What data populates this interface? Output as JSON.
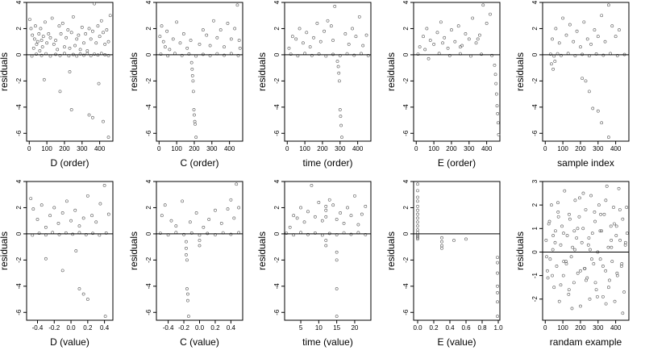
{
  "chart_data": [
    {
      "type": "scatter",
      "xlabel": "D (order)",
      "ylabel": "residuals",
      "xlim": [
        -15,
        475
      ],
      "ylim": [
        -6.6,
        4.0
      ],
      "xticks": [
        0,
        100,
        200,
        300,
        400
      ],
      "yticks": [
        4,
        2,
        0,
        -2,
        -4,
        -6
      ],
      "hline": 0,
      "x": [
        3,
        10,
        18,
        25,
        30,
        35,
        42,
        48,
        55,
        60,
        65,
        70,
        75,
        80,
        90,
        100,
        110,
        120,
        130,
        140,
        150,
        160,
        170,
        180,
        190,
        200,
        210,
        220,
        230,
        240,
        250,
        260,
        270,
        280,
        290,
        300,
        310,
        320,
        330,
        340,
        350,
        360,
        370,
        380,
        390,
        400,
        410,
        420,
        430,
        440,
        450,
        460,
        15,
        40,
        70,
        95,
        120,
        150,
        175,
        200,
        225,
        250,
        270,
        290,
        310,
        330,
        350,
        370,
        390,
        410,
        430,
        450,
        85,
        175,
        230,
        240,
        340,
        360,
        395,
        420,
        450
      ],
      "y": [
        2.7,
        2.0,
        1.5,
        0.5,
        1.2,
        2.2,
        0.8,
        1.0,
        1.6,
        0.3,
        2.0,
        1.1,
        0.6,
        1.4,
        2.5,
        0.9,
        1.6,
        1.3,
        2.8,
        0.8,
        1.1,
        0.4,
        2.2,
        1.6,
        2.4,
        0.6,
        1.3,
        1.9,
        0.5,
        1.7,
        2.9,
        0.7,
        1.2,
        1.5,
        0.4,
        2.1,
        0.9,
        1.6,
        0.3,
        2.0,
        1.2,
        1.8,
        3.9,
        0.9,
        2.2,
        1.4,
        2.6,
        1.7,
        0.8,
        1.9,
        1.0,
        3.0,
        -0.1,
        0.05,
        -0.05,
        0.08,
        -0.1,
        0.03,
        -0.06,
        0.1,
        -0.08,
        0.02,
        -0.1,
        0.06,
        -0.04,
        0.09,
        -0.07,
        0.05,
        -0.02,
        0.1,
        0.0,
        -0.06,
        -1.9,
        -2.8,
        -1.3,
        -4.2,
        -4.6,
        -4.8,
        -2.2,
        -5.1,
        -6.3
      ]
    },
    {
      "type": "scatter",
      "xlabel": "C (order)",
      "ylabel": "residuals",
      "xlim": [
        -15,
        475
      ],
      "ylim": [
        -6.6,
        4.0
      ],
      "xticks": [
        0,
        100,
        200,
        300,
        400
      ],
      "yticks": [
        4,
        2,
        0,
        -2,
        -4,
        -6
      ],
      "hline": 0,
      "x": [
        5,
        15,
        25,
        35,
        45,
        60,
        80,
        100,
        120,
        140,
        160,
        180,
        230,
        250,
        270,
        290,
        310,
        330,
        350,
        370,
        390,
        410,
        430,
        445,
        455,
        460,
        10,
        50,
        90,
        130,
        170,
        210,
        250,
        290,
        330,
        370,
        410,
        450,
        185,
        188,
        190,
        193,
        195,
        198,
        200,
        203,
        205,
        210
      ],
      "y": [
        1.4,
        2.2,
        1.0,
        0.6,
        1.8,
        0.4,
        1.2,
        2.5,
        0.9,
        1.6,
        0.5,
        1.1,
        0.8,
        1.9,
        1.5,
        0.7,
        2.6,
        1.3,
        1.9,
        0.6,
        2.4,
        1.2,
        2.0,
        3.8,
        1.1,
        0.5,
        0.05,
        -0.08,
        0.1,
        -0.05,
        0.06,
        -0.1,
        0.03,
        -0.07,
        0.08,
        -0.04,
        0.09,
        -0.06,
        -0.6,
        -1.1,
        -1.6,
        -2.0,
        -2.8,
        -4.2,
        -4.6,
        -5.1,
        -5.3,
        -6.3
      ]
    },
    {
      "type": "scatter",
      "xlabel": "time (order)",
      "ylabel": "residuals",
      "xlim": [
        -15,
        475
      ],
      "ylim": [
        -6.6,
        4.0
      ],
      "xticks": [
        0,
        100,
        200,
        300,
        400
      ],
      "yticks": [
        4,
        2,
        0,
        -2,
        -4,
        -6
      ],
      "hline": 0,
      "x": [
        10,
        30,
        50,
        70,
        90,
        110,
        130,
        150,
        170,
        190,
        210,
        230,
        250,
        260,
        270,
        330,
        350,
        370,
        390,
        410,
        430,
        450,
        20,
        60,
        100,
        140,
        180,
        220,
        260,
        300,
        340,
        380,
        420,
        460,
        285,
        290,
        293,
        296,
        300,
        303,
        306,
        310
      ],
      "y": [
        0.5,
        1.4,
        1.2,
        2.0,
        0.9,
        1.7,
        0.6,
        1.3,
        2.4,
        1.0,
        1.8,
        2.6,
        2.2,
        1.1,
        3.7,
        1.6,
        0.8,
        2.0,
        1.4,
        2.9,
        0.7,
        1.5,
        0.05,
        -0.08,
        0.1,
        -0.05,
        0.06,
        -0.1,
        0.03,
        -0.07,
        0.08,
        -0.04,
        0.09,
        -0.06,
        -0.5,
        -0.9,
        -1.4,
        -2.0,
        -4.2,
        -4.7,
        -5.4,
        -6.3
      ]
    },
    {
      "type": "scatter",
      "xlabel": "E (order)",
      "ylabel": "residuals",
      "xlim": [
        -15,
        475
      ],
      "ylim": [
        -6.6,
        4.0
      ],
      "xticks": [
        0,
        100,
        200,
        300,
        400
      ],
      "yticks": [
        4,
        2,
        0,
        -2,
        -4,
        -6
      ],
      "hline": 0,
      "x": [
        20,
        40,
        60,
        80,
        100,
        120,
        140,
        160,
        180,
        200,
        220,
        240,
        260,
        280,
        300,
        320,
        340,
        360,
        380,
        400,
        420,
        50,
        150,
        250,
        350,
        10,
        70,
        130,
        190,
        250,
        310,
        370,
        430,
        445,
        450,
        453,
        456,
        459,
        462,
        465,
        468
      ],
      "y": [
        0.6,
        1.4,
        2.0,
        1.1,
        0.8,
        1.7,
        2.5,
        1.3,
        0.5,
        1.9,
        1.0,
        2.2,
        0.7,
        1.6,
        1.2,
        2.8,
        0.9,
        1.5,
        3.8,
        2.4,
        3.1,
        0.4,
        0.9,
        0.6,
        1.2,
        0.05,
        -0.3,
        0.1,
        -0.06,
        0.08,
        -0.1,
        0.04,
        -0.05,
        -0.8,
        -1.5,
        -2.2,
        -3.0,
        -3.9,
        -4.5,
        -5.2,
        -6.1
      ]
    },
    {
      "type": "scatter",
      "xlabel": "sample index",
      "ylabel": "residuals",
      "xlim": [
        -15,
        475
      ],
      "ylim": [
        -6.6,
        4.0
      ],
      "xticks": [
        0,
        100,
        200,
        300,
        400
      ],
      "yticks": [
        4,
        2,
        0,
        -2,
        -4,
        -6
      ],
      "hline": 0,
      "x": [
        40,
        60,
        80,
        100,
        120,
        140,
        160,
        180,
        200,
        220,
        240,
        260,
        280,
        300,
        320,
        340,
        360,
        380,
        400,
        420,
        30,
        50,
        70,
        90,
        130,
        170,
        210,
        250,
        290,
        330,
        370,
        410,
        450,
        35,
        45,
        55,
        210,
        230,
        250,
        270,
        300,
        320,
        360
      ],
      "y": [
        1.2,
        2.0,
        0.9,
        2.8,
        1.5,
        2.3,
        1.0,
        1.8,
        0.6,
        2.5,
        1.2,
        0.8,
        1.9,
        1.4,
        3.0,
        1.0,
        3.8,
        2.2,
        1.4,
        1.9,
        0.05,
        -0.1,
        0.08,
        -0.05,
        0.1,
        -0.07,
        0.03,
        -0.08,
        0.06,
        -0.04,
        0.09,
        -0.06,
        0.02,
        -0.7,
        -1.1,
        -0.5,
        -1.8,
        -2.0,
        -2.8,
        -4.1,
        -4.3,
        -5.2,
        -6.3
      ]
    },
    {
      "type": "scatter",
      "xlabel": "D (value)",
      "ylabel": "residuals",
      "xlim": [
        -0.53,
        0.5
      ],
      "ylim": [
        -6.6,
        4.0
      ],
      "xticks": [
        -0.4,
        -0.2,
        0.0,
        0.2,
        0.4
      ],
      "xticklabels": [
        "-0.4",
        "-0.2",
        "0.0",
        "0.2",
        "0.4"
      ],
      "yticks": [
        4,
        2,
        0,
        -2,
        -4,
        -6
      ],
      "hline": 0,
      "x": [
        -0.48,
        -0.45,
        -0.4,
        -0.35,
        -0.3,
        -0.25,
        -0.2,
        -0.15,
        -0.1,
        -0.05,
        0,
        0.05,
        0.1,
        0.15,
        0.2,
        0.25,
        0.3,
        0.35,
        0.4,
        0.45,
        -0.46,
        -0.38,
        -0.3,
        -0.22,
        -0.14,
        -0.06,
        0.02,
        0.1,
        0.18,
        0.26,
        0.34,
        0.42,
        -0.3,
        -0.1,
        0.06,
        0.1,
        0.15,
        0.2,
        0.41
      ],
      "y": [
        2.7,
        1.9,
        1.1,
        2.2,
        0.5,
        1.4,
        2.0,
        0.8,
        1.6,
        2.5,
        1.0,
        1.8,
        0.6,
        1.2,
        2.9,
        1.4,
        0.9,
        2.3,
        3.7,
        1.5,
        -0.1,
        0.05,
        -0.08,
        0.1,
        -0.05,
        0.07,
        -0.03,
        0.09,
        -0.06,
        0.04,
        -0.1,
        0.06,
        -1.9,
        -2.8,
        -1.3,
        -4.2,
        -4.6,
        -5.0,
        -6.3
      ]
    },
    {
      "type": "scatter",
      "xlabel": "C (value)",
      "ylabel": "residuals",
      "xlim": [
        -0.55,
        0.55
      ],
      "ylim": [
        -6.6,
        4.0
      ],
      "xticks": [
        -0.4,
        -0.2,
        0.0,
        0.2,
        0.4
      ],
      "xticklabels": [
        "-0.4",
        "-0.2",
        "0.0",
        "0.2",
        "0.4"
      ],
      "yticks": [
        4,
        2,
        0,
        -2,
        -4,
        -6
      ],
      "hline": 0,
      "x": [
        -0.48,
        -0.44,
        -0.36,
        -0.3,
        -0.22,
        -0.12,
        -0.04,
        0.05,
        0.12,
        0.2,
        0.28,
        0.36,
        0.4,
        0.44,
        0.47,
        0.5,
        -0.5,
        -0.4,
        -0.3,
        -0.2,
        -0.1,
        0,
        0.1,
        0.2,
        0.3,
        0.4,
        0.5,
        -0.17,
        -0.17,
        -0.17,
        -0.16,
        -0.16,
        -0.15,
        -0.15,
        -0.14,
        0,
        0
      ],
      "y": [
        1.4,
        2.2,
        1.0,
        0.6,
        2.5,
        0.9,
        1.6,
        0.5,
        1.1,
        1.8,
        0.8,
        1.9,
        2.6,
        1.2,
        3.8,
        2.0,
        0.05,
        -0.08,
        0.1,
        -0.05,
        0.06,
        -0.1,
        0.03,
        -0.07,
        0.08,
        -0.04,
        0.09,
        -0.6,
        -1.1,
        -1.6,
        -2.0,
        -4.2,
        -4.6,
        -5.1,
        -6.3,
        -0.5,
        -0.9
      ]
    },
    {
      "type": "scatter",
      "xlabel": "time (value)",
      "ylabel": "residuals",
      "xlim": [
        0.5,
        24.5
      ],
      "ylim": [
        -6.6,
        4.0
      ],
      "xticks": [
        5,
        10,
        15,
        20
      ],
      "yticks": [
        4,
        2,
        0,
        -2,
        -4,
        -6
      ],
      "hline": 0,
      "x": [
        2,
        3,
        4,
        5,
        6,
        7,
        8,
        9,
        10,
        11,
        12,
        13,
        14,
        15,
        16,
        17,
        18,
        19,
        20,
        21,
        22,
        23,
        1,
        3,
        5,
        7,
        9,
        11,
        13,
        15,
        17,
        19,
        21,
        23,
        12,
        12,
        12,
        12,
        15,
        15,
        15,
        15
      ],
      "y": [
        0.5,
        1.4,
        1.2,
        2.0,
        0.9,
        1.7,
        3.7,
        1.3,
        2.4,
        1.0,
        1.8,
        2.6,
        2.2,
        1.1,
        1.6,
        0.8,
        2.0,
        1.4,
        2.9,
        0.7,
        1.5,
        2.1,
        0.05,
        -0.08,
        0.1,
        -0.05,
        0.06,
        -0.1,
        0.03,
        -0.07,
        0.08,
        -0.04,
        0.09,
        -0.06,
        -0.5,
        -0.9,
        1.3,
        2.1,
        -1.4,
        -2.0,
        -4.2,
        -6.3
      ]
    },
    {
      "type": "scatter",
      "xlabel": "E (value)",
      "ylabel": "residuals",
      "xlim": [
        -0.05,
        1.02
      ],
      "ylim": [
        -6.6,
        4.0
      ],
      "xticks": [
        0.0,
        0.2,
        0.4,
        0.6,
        0.8,
        1.0
      ],
      "xticklabels": [
        "0.0",
        "0.2",
        "0.4",
        "0.6",
        "0.8",
        "1.0"
      ],
      "yticks": [
        4,
        2,
        0,
        -2,
        -4,
        -6
      ],
      "hline": 0,
      "x": [
        0,
        0,
        0,
        0,
        0,
        0,
        0,
        0,
        0,
        0,
        0,
        0,
        0,
        0,
        0,
        0,
        0.3,
        0.3,
        0.3,
        0.3,
        0.45,
        0.6,
        0.99,
        0.99,
        0.99,
        0.99,
        0.99,
        0.99,
        0.99
      ],
      "y": [
        3.8,
        3.3,
        2.8,
        2.5,
        2.1,
        1.8,
        1.5,
        1.2,
        0.9,
        0.6,
        0.3,
        0.1,
        -0.1,
        -0.2,
        -0.3,
        -0.4,
        -0.3,
        -0.6,
        -0.9,
        -1.1,
        -0.5,
        -0.4,
        -1.8,
        -2.2,
        -3.0,
        -4.0,
        -4.5,
        -5.2,
        -6.3
      ]
    },
    {
      "type": "scatter",
      "xlabel": "randam example",
      "ylabel": "residuals",
      "xlim": [
        -15,
        475
      ],
      "ylim": [
        -2.9,
        3.0
      ],
      "xticks": [
        0,
        100,
        200,
        300,
        400
      ],
      "yticks": [
        3,
        2,
        1,
        0,
        -1,
        -2
      ],
      "hline": 0,
      "x": [
        5,
        12,
        20,
        28,
        35,
        43,
        50,
        58,
        65,
        73,
        80,
        88,
        95,
        103,
        110,
        118,
        125,
        133,
        140,
        148,
        155,
        163,
        170,
        178,
        185,
        193,
        200,
        208,
        215,
        223,
        230,
        238,
        245,
        253,
        260,
        268,
        275,
        283,
        290,
        298,
        305,
        313,
        320,
        328,
        335,
        343,
        350,
        358,
        365,
        373,
        380,
        388,
        395,
        403,
        410,
        418,
        425,
        433,
        440,
        448,
        455,
        462,
        8,
        24,
        40,
        56,
        72,
        88,
        104,
        120,
        136,
        152,
        168,
        184,
        200,
        216,
        232,
        248,
        264,
        280,
        296,
        312,
        328,
        344,
        360,
        376,
        392,
        408,
        424,
        440,
        456,
        15,
        45,
        75,
        105,
        135,
        165,
        195,
        225,
        255,
        285,
        315,
        345,
        375,
        405,
        435,
        465
      ],
      "y": [
        0.5,
        -0.8,
        1.2,
        -0.3,
        2.0,
        0.1,
        -1.5,
        0.9,
        -0.6,
        1.7,
        -2.1,
        0.3,
        1.1,
        -1.0,
        2.6,
        -0.4,
        0.7,
        -1.8,
        1.4,
        -0.2,
        0.2,
        -1.3,
        2.2,
        0.6,
        -0.9,
        1.5,
        -2.3,
        0.4,
        1.0,
        -0.7,
        1.8,
        -1.1,
        0.3,
        -2.0,
        2.4,
        0.8,
        -0.5,
        1.3,
        -1.6,
        0.0,
        2.0,
        -0.3,
        0.9,
        -1.9,
        1.6,
        -0.8,
        2.8,
        0.2,
        -1.2,
        1.1,
        -0.4,
        1.9,
        -2.1,
        0.7,
        -1.0,
        2.7,
        0.5,
        -0.6,
        1.4,
        -1.7,
        0.3,
        1.9,
        -0.2,
        1.3,
        -1.0,
        0.4,
        2.1,
        -1.4,
        0.8,
        -0.5,
        1.6,
        -2.4,
        0.1,
        1.0,
        -0.8,
        2.5,
        -1.2,
        0.6,
        -0.3,
        1.7,
        -1.9,
        0.9,
        -0.6,
        2.2,
        -1.5,
        0.2,
        1.2,
        -0.9,
        1.8,
        -2.6,
        0.4,
        -1.1,
        0.7,
        1.5,
        -0.4,
        -1.6,
        0.9,
        2.3,
        -0.7,
        0.1,
        -1.3,
        1.6,
        -2.2,
        0.5,
        1.1,
        -0.5,
        0.8
      ]
    }
  ]
}
